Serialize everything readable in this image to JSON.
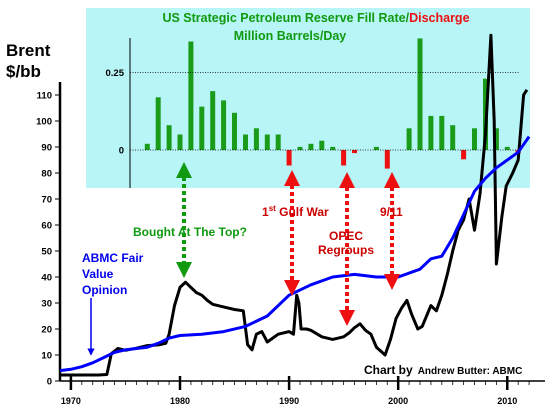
{
  "chart_data": [
    {
      "type": "line",
      "ylabel": "Brent\n$/bb",
      "ylim": [
        0,
        140
      ],
      "xlim": [
        1969,
        2013
      ],
      "x_ticks": [
        1970,
        1980,
        1990,
        2000,
        2010
      ],
      "y_ticks": [
        0,
        10,
        20,
        30,
        40,
        50,
        60,
        70,
        80,
        90,
        100,
        110
      ],
      "series": [
        {
          "key": "brent",
          "color": "#000000",
          "points": [
            [
              1969.0,
              2.3
            ],
            [
              1971.0,
              2.3
            ],
            [
              1972.5,
              2.3
            ],
            [
              1973.3,
              2.5
            ],
            [
              1973.7,
              10.5
            ],
            [
              1974.3,
              12.5
            ],
            [
              1975.0,
              11.8
            ],
            [
              1976.0,
              12.6
            ],
            [
              1977.0,
              13.6
            ],
            [
              1978.0,
              13.9
            ],
            [
              1978.7,
              14.5
            ],
            [
              1979.0,
              18
            ],
            [
              1979.5,
              29
            ],
            [
              1980.0,
              36
            ],
            [
              1980.5,
              38
            ],
            [
              1981.0,
              36
            ],
            [
              1981.5,
              34
            ],
            [
              1982.0,
              33
            ],
            [
              1982.5,
              31
            ],
            [
              1983.0,
              29.5
            ],
            [
              1984.0,
              28.5
            ],
            [
              1985.0,
              27.5
            ],
            [
              1985.8,
              27
            ],
            [
              1986.2,
              14
            ],
            [
              1986.6,
              12
            ],
            [
              1987.0,
              18
            ],
            [
              1987.5,
              19
            ],
            [
              1988.0,
              15
            ],
            [
              1989.0,
              18
            ],
            [
              1990.0,
              19
            ],
            [
              1990.4,
              18
            ],
            [
              1990.7,
              33
            ],
            [
              1990.9,
              30
            ],
            [
              1991.1,
              20
            ],
            [
              1991.6,
              20
            ],
            [
              1992.0,
              19.5
            ],
            [
              1993.0,
              17
            ],
            [
              1994.0,
              16
            ],
            [
              1995.0,
              17
            ],
            [
              1995.5,
              18.5
            ],
            [
              1996.0,
              20.5
            ],
            [
              1996.5,
              22
            ],
            [
              1997.0,
              19.5
            ],
            [
              1997.5,
              18
            ],
            [
              1998.0,
              13
            ],
            [
              1998.8,
              10
            ],
            [
              1999.3,
              16
            ],
            [
              1999.8,
              24
            ],
            [
              2000.3,
              28
            ],
            [
              2000.8,
              31
            ],
            [
              2001.2,
              26
            ],
            [
              2001.8,
              20
            ],
            [
              2002.2,
              21
            ],
            [
              2002.7,
              26
            ],
            [
              2003.0,
              29
            ],
            [
              2003.5,
              27
            ],
            [
              2004.0,
              33
            ],
            [
              2004.5,
              41
            ],
            [
              2005.0,
              50
            ],
            [
              2005.5,
              58
            ],
            [
              2006.0,
              62
            ],
            [
              2006.5,
              70
            ],
            [
              2007.0,
              58
            ],
            [
              2007.5,
              72
            ],
            [
              2008.0,
              95
            ],
            [
              2008.5,
              133
            ],
            [
              2008.8,
              100
            ],
            [
              2009.0,
              45
            ],
            [
              2009.5,
              63
            ],
            [
              2009.9,
              75
            ],
            [
              2010.5,
              80
            ],
            [
              2011.0,
              85
            ],
            [
              2011.5,
              110
            ],
            [
              2011.8,
              112
            ]
          ]
        },
        {
          "key": "fair_value",
          "name": "ABMC Fair Value Opinion",
          "color": "#0000ff",
          "points": [
            [
              1969.0,
              4
            ],
            [
              1970.0,
              4.5
            ],
            [
              1971.0,
              5.5
            ],
            [
              1972.0,
              7
            ],
            [
              1973.0,
              9
            ],
            [
              1974.0,
              11
            ],
            [
              1975.0,
              12
            ],
            [
              1976.0,
              12.5
            ],
            [
              1977.0,
              13
            ],
            [
              1978.0,
              14.5
            ],
            [
              1979.0,
              16.5
            ],
            [
              1980.0,
              17.5
            ],
            [
              1982.0,
              18
            ],
            [
              1984.0,
              19
            ],
            [
              1986.0,
              21
            ],
            [
              1988.0,
              25
            ],
            [
              1990.0,
              33
            ],
            [
              1992.0,
              37
            ],
            [
              1994.0,
              40
            ],
            [
              1996.0,
              41
            ],
            [
              1998.0,
              40
            ],
            [
              2000.0,
              40
            ],
            [
              2002.0,
              43
            ],
            [
              2003.0,
              47
            ],
            [
              2004.0,
              48
            ],
            [
              2005.0,
              55
            ],
            [
              2006.0,
              64
            ],
            [
              2007.0,
              73
            ],
            [
              2008.0,
              78
            ],
            [
              2009.0,
              82
            ],
            [
              2010.0,
              85
            ],
            [
              2011.0,
              88
            ],
            [
              2012.0,
              94
            ]
          ]
        }
      ],
      "annotations": [
        {
          "key": "top",
          "text": "Bought At The Top?",
          "color": "#109a10"
        },
        {
          "key": "gulf_pre",
          "text": "1",
          "superscript": "st",
          "post": " Gulf War",
          "color": "#cc0000"
        },
        {
          "key": "opec",
          "text": "OPEC\nRegroups",
          "color": "#cc0000"
        },
        {
          "key": "nine11",
          "text": "9/11",
          "color": "#cc0000"
        }
      ],
      "credit": {
        "prefix": "Chart by",
        "name": "Andrew Butter: ABMC"
      }
    },
    {
      "type": "bar",
      "title_part1": "US Strategic Petroleum Reserve  Fill Rate/",
      "title_part2": "Discharge",
      "subtitle": "Million Barrels/Day",
      "ylim": [
        -0.1,
        0.4
      ],
      "y_ticks": [
        0,
        0.25
      ],
      "colors": {
        "fill": "#1a9c1a",
        "discharge": "#ee1010",
        "panel": "#b8f5f7"
      },
      "x": [
        1977,
        1978,
        1979,
        1980,
        1981,
        1982,
        1983,
        1984,
        1985,
        1986,
        1987,
        1988,
        1989,
        1990,
        1991,
        1992,
        1993,
        1994,
        1995,
        1996,
        1997,
        1998,
        1999,
        2000,
        2001,
        2002,
        2003,
        2004,
        2005,
        2006,
        2007,
        2008,
        2009,
        2010,
        2011
      ],
      "values": [
        0.02,
        0.17,
        0.08,
        0.05,
        0.35,
        0.14,
        0.19,
        0.16,
        0.12,
        0.05,
        0.07,
        0.05,
        0.05,
        -0.05,
        0.01,
        0.02,
        0.03,
        0.01,
        -0.05,
        -0.01,
        0,
        0.01,
        -0.06,
        0,
        0.07,
        0.36,
        0.11,
        0.11,
        0.08,
        -0.03,
        0.07,
        0.23,
        0.07,
        0.01,
        -0.01
      ]
    }
  ]
}
